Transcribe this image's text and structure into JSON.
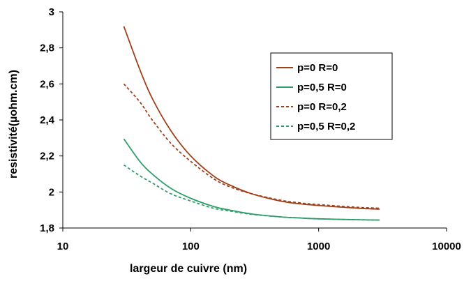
{
  "chart_data": {
    "type": "line",
    "xlabel": "largeur de cuivre (nm)",
    "ylabel": "resistivité(µohm.cm)",
    "xscale": "log",
    "xlim": [
      10,
      10000
    ],
    "ylim": [
      1.8,
      3
    ],
    "xticks": [
      "10",
      "100",
      "1000",
      "10000"
    ],
    "yticks": [
      "1,8",
      "2",
      "2,2",
      "2,4",
      "2,6",
      "2,8",
      "3"
    ],
    "grid": false,
    "legend_position": "right",
    "x": [
      30,
      40,
      50,
      70,
      100,
      150,
      200,
      300,
      500,
      700,
      1000,
      2000,
      3000
    ],
    "series": [
      {
        "name": "p=0 R=0",
        "color": "#A0401A",
        "dash": "solid",
        "values": [
          2.92,
          2.68,
          2.52,
          2.34,
          2.2,
          2.09,
          2.04,
          1.99,
          1.95,
          1.935,
          1.925,
          1.91,
          1.905
        ]
      },
      {
        "name": "p=0,5 R=0",
        "color": "#2E9E6A",
        "dash": "solid",
        "values": [
          2.295,
          2.17,
          2.1,
          2.02,
          1.965,
          1.92,
          1.9,
          1.878,
          1.862,
          1.856,
          1.851,
          1.846,
          1.844
        ]
      },
      {
        "name": "p=0 R=0,2",
        "color": "#A0401A",
        "dash": "dashed",
        "values": [
          2.6,
          2.5,
          2.4,
          2.27,
          2.17,
          2.075,
          2.03,
          1.99,
          1.955,
          1.94,
          1.93,
          1.915,
          1.91
        ]
      },
      {
        "name": "p=0,5 R=0,2",
        "color": "#2E9E6A",
        "dash": "dashed",
        "values": [
          2.15,
          2.09,
          2.05,
          1.99,
          1.95,
          1.91,
          1.895,
          1.876,
          1.862,
          1.856,
          1.851,
          1.846,
          1.844
        ]
      }
    ]
  }
}
